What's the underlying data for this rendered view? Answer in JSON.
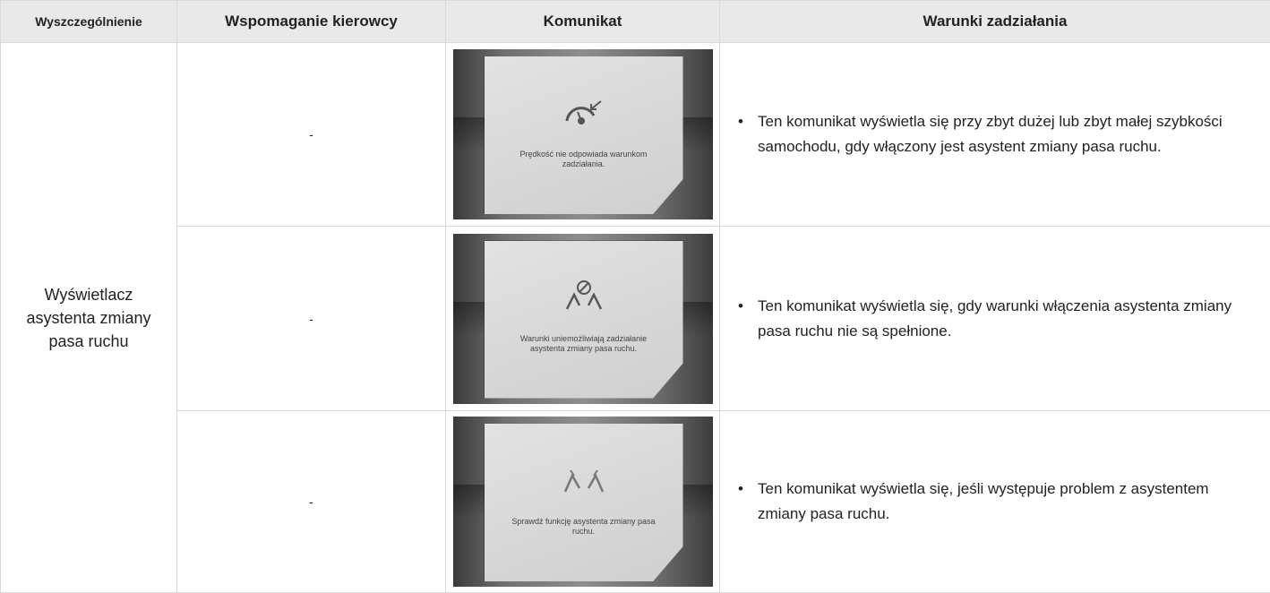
{
  "table": {
    "headers": [
      "Wyszczególnienie",
      "Wspomaganie kierowcy",
      "Komunikat",
      "Warunki zadziałania"
    ],
    "category": "Wyświetlacz asystenta zmiany pasa ruchu",
    "rows": [
      {
        "assist": "-",
        "message": "Prędkość nie odpowiada warunkom zadziałania.",
        "conditions": "Ten komunikat wyświetla się przy zbyt dużej lub zbyt małej szybkości samochodu, gdy włączony jest asystent zmiany pasa ruchu."
      },
      {
        "assist": "-",
        "message": "Warunki uniemożliwiają zadziałanie asystenta zmiany pasa ruchu.",
        "conditions": "Ten komunikat wyświetla się, gdy warunki włączenia asystenta zmiany pasa ruchu nie są spełnione."
      },
      {
        "assist": "-",
        "message": "Sprawdź funkcję asystenta zmiany pasa ruchu.",
        "conditions": "Ten komunikat wyświetla się, jeśli występuje problem z asystentem zmiany pasa ruchu."
      }
    ]
  }
}
